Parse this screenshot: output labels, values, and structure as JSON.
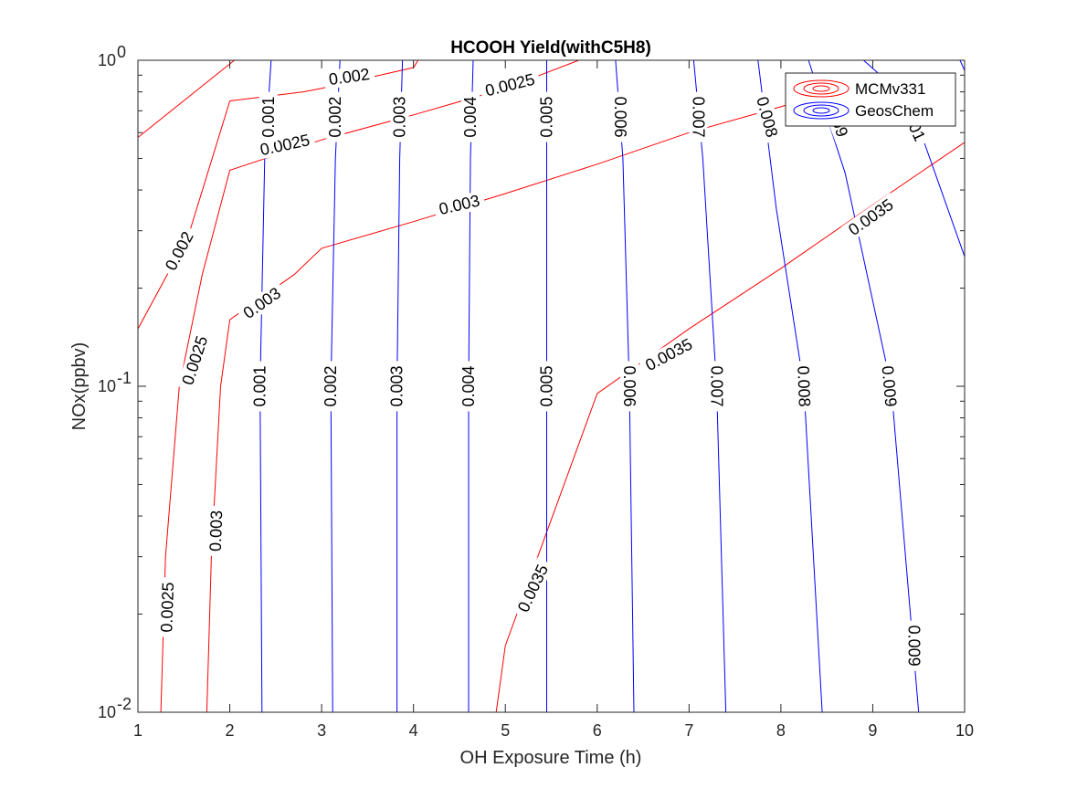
{
  "chart_data": {
    "type": "contour",
    "title": "HCOOH Yield(withC5H8)",
    "xlabel": "OH Exposure Time (h)",
    "ylabel": "NOx(ppbv)",
    "xlim": [
      1,
      10
    ],
    "ylim": [
      0.01,
      1
    ],
    "yscale": "log",
    "x_ticks": [
      1,
      2,
      3,
      4,
      5,
      6,
      7,
      8,
      9,
      10
    ],
    "x_tick_labels": [
      "1",
      "2",
      "3",
      "4",
      "5",
      "6",
      "7",
      "8",
      "9",
      "10"
    ],
    "y_major_ticks": [
      {
        "value": 0.01,
        "base": "10",
        "exp": "-2"
      },
      {
        "value": 0.1,
        "base": "10",
        "exp": "-1"
      },
      {
        "value": 1,
        "base": "10",
        "exp": "0"
      }
    ],
    "grid": false,
    "legend_position": "top-right",
    "legend": [
      {
        "name": "MCMv331",
        "color": "#ff0000"
      },
      {
        "name": "GeosChem",
        "color": "#0000ff"
      }
    ],
    "series": [
      {
        "name": "MCMv331",
        "color": "#ff0000",
        "contours": [
          {
            "level": 0.002,
            "points": [
              [
                1.0,
                0.58
              ],
              [
                2.05,
                1.0
              ]
            ]
          },
          {
            "level": 0.002,
            "points": [
              [
                1.0,
                0.15
              ],
              [
                1.55,
                0.29
              ],
              [
                2.0,
                0.75
              ],
              [
                2.8,
                0.8
              ],
              [
                3.0,
                0.82
              ],
              [
                4.0,
                0.95
              ],
              [
                4.05,
                1.0
              ]
            ]
          },
          {
            "level": 0.0025,
            "points": [
              [
                1.25,
                0.01
              ],
              [
                1.3,
                0.03
              ],
              [
                1.45,
                0.1
              ],
              [
                1.7,
                0.22
              ],
              [
                2.0,
                0.46
              ],
              [
                3.0,
                0.57
              ],
              [
                4.0,
                0.68
              ],
              [
                5.0,
                0.82
              ],
              [
                5.8,
                1.0
              ]
            ]
          },
          {
            "level": 0.003,
            "points": [
              [
                1.75,
                0.01
              ],
              [
                1.8,
                0.03
              ],
              [
                1.9,
                0.1
              ],
              [
                2.0,
                0.16
              ],
              [
                2.7,
                0.22
              ],
              [
                3.0,
                0.265
              ],
              [
                4.0,
                0.32
              ],
              [
                5.0,
                0.39
              ],
              [
                6.0,
                0.48
              ],
              [
                7.0,
                0.6
              ],
              [
                8.0,
                0.72
              ],
              [
                8.4,
                0.78
              ]
            ]
          },
          {
            "level": 0.0035,
            "points": [
              [
                4.9,
                0.01
              ],
              [
                5.0,
                0.016
              ],
              [
                6.0,
                0.095
              ],
              [
                7.0,
                0.15
              ],
              [
                8.0,
                0.23
              ],
              [
                9.0,
                0.36
              ],
              [
                10.0,
                0.56
              ]
            ]
          }
        ]
      },
      {
        "name": "GeosChem",
        "color": "#0000ff",
        "contours": [
          {
            "level": 0.001,
            "points": [
              [
                2.35,
                0.01
              ],
              [
                2.33,
                0.1
              ],
              [
                2.38,
                0.5
              ],
              [
                2.45,
                1.0
              ]
            ]
          },
          {
            "level": 0.002,
            "points": [
              [
                3.12,
                0.01
              ],
              [
                3.1,
                0.1
              ],
              [
                3.15,
                0.5
              ],
              [
                3.2,
                1.0
              ]
            ]
          },
          {
            "level": 0.003,
            "points": [
              [
                3.82,
                0.01
              ],
              [
                3.82,
                0.1
              ],
              [
                3.85,
                0.5
              ],
              [
                3.88,
                1.0
              ]
            ]
          },
          {
            "level": 0.004,
            "points": [
              [
                4.6,
                0.01
              ],
              [
                4.6,
                0.1
              ],
              [
                4.62,
                0.5
              ],
              [
                4.65,
                1.0
              ]
            ]
          },
          {
            "level": 0.005,
            "points": [
              [
                5.45,
                0.01
              ],
              [
                5.45,
                0.1
              ],
              [
                5.45,
                0.5
              ],
              [
                5.45,
                1.0
              ]
            ]
          },
          {
            "level": 0.006,
            "points": [
              [
                6.4,
                0.01
              ],
              [
                6.35,
                0.1
              ],
              [
                6.28,
                0.5
              ],
              [
                6.2,
                1.0
              ]
            ]
          },
          {
            "level": 0.007,
            "points": [
              [
                7.4,
                0.01
              ],
              [
                7.3,
                0.1
              ],
              [
                7.15,
                0.5
              ],
              [
                7.05,
                1.0
              ]
            ]
          },
          {
            "level": 0.008,
            "points": [
              [
                8.45,
                0.01
              ],
              [
                8.25,
                0.1
              ],
              [
                7.95,
                0.35
              ],
              [
                7.75,
                1.0
              ]
            ]
          },
          {
            "level": 0.009,
            "points": [
              [
                9.5,
                0.01
              ],
              [
                9.2,
                0.1
              ],
              [
                8.7,
                0.45
              ],
              [
                8.3,
                1.0
              ]
            ]
          },
          {
            "level": 0.01,
            "points": [
              [
                8.9,
                1.0
              ],
              [
                9.4,
                0.75
              ],
              [
                10.0,
                0.25
              ]
            ]
          },
          {
            "level": 0.011,
            "points": [
              [
                9.95,
                1.0
              ],
              [
                10.0,
                0.93
              ]
            ]
          }
        ]
      }
    ],
    "contour_labels": [
      {
        "text": "0.002",
        "x": 3.3,
        "y": 0.89,
        "angle": -8
      },
      {
        "text": "0.002",
        "x": 1.45,
        "y": 0.26,
        "angle": -62
      },
      {
        "text": "0.0025",
        "x": 5.05,
        "y": 0.84,
        "angle": -14
      },
      {
        "text": "0.0025",
        "x": 2.6,
        "y": 0.55,
        "angle": -12
      },
      {
        "text": "0.0025",
        "x": 1.62,
        "y": 0.12,
        "angle": -72
      },
      {
        "text": "0.0025",
        "x": 1.32,
        "y": 0.021,
        "angle": -88
      },
      {
        "text": "0.003",
        "x": 4.5,
        "y": 0.36,
        "angle": -13
      },
      {
        "text": "0.003",
        "x": 2.35,
        "y": 0.18,
        "angle": -35
      },
      {
        "text": "0.003",
        "x": 1.85,
        "y": 0.036,
        "angle": -88
      },
      {
        "text": "0.0035",
        "x": 8.98,
        "y": 0.33,
        "angle": -35
      },
      {
        "text": "0.0035",
        "x": 6.78,
        "y": 0.125,
        "angle": -28
      },
      {
        "text": "0.0035",
        "x": 5.3,
        "y": 0.024,
        "angle": -65
      },
      {
        "text": "0.001",
        "x": 2.42,
        "y": 0.67,
        "angle": -90
      },
      {
        "text": "0.002",
        "x": 3.15,
        "y": 0.67,
        "angle": -90
      },
      {
        "text": "0.003",
        "x": 3.85,
        "y": 0.67,
        "angle": -90
      },
      {
        "text": "0.004",
        "x": 4.62,
        "y": 0.67,
        "angle": -90
      },
      {
        "text": "0.005",
        "x": 5.45,
        "y": 0.67,
        "angle": -90
      },
      {
        "text": "0.006",
        "x": 6.25,
        "y": 0.67,
        "angle": 90
      },
      {
        "text": "0.007",
        "x": 7.1,
        "y": 0.67,
        "angle": 90
      },
      {
        "text": "0.008",
        "x": 7.85,
        "y": 0.67,
        "angle": 75
      },
      {
        "text": "0.009",
        "x": 8.6,
        "y": 0.67,
        "angle": 70
      },
      {
        "text": "0.01",
        "x": 9.45,
        "y": 0.63,
        "angle": 65
      },
      {
        "text": "0.001",
        "x": 2.33,
        "y": 0.1,
        "angle": -90
      },
      {
        "text": "0.002",
        "x": 3.1,
        "y": 0.1,
        "angle": -90
      },
      {
        "text": "0.003",
        "x": 3.82,
        "y": 0.1,
        "angle": -90
      },
      {
        "text": "0.004",
        "x": 4.6,
        "y": 0.1,
        "angle": -90
      },
      {
        "text": "0.005",
        "x": 5.45,
        "y": 0.1,
        "angle": -90
      },
      {
        "text": "0.006",
        "x": 6.35,
        "y": 0.1,
        "angle": 90
      },
      {
        "text": "0.007",
        "x": 7.3,
        "y": 0.1,
        "angle": 90
      },
      {
        "text": "0.008",
        "x": 8.25,
        "y": 0.1,
        "angle": 88
      },
      {
        "text": "0.009",
        "x": 9.18,
        "y": 0.1,
        "angle": 85
      },
      {
        "text": "0.009",
        "x": 9.45,
        "y": 0.016,
        "angle": 90
      }
    ]
  }
}
